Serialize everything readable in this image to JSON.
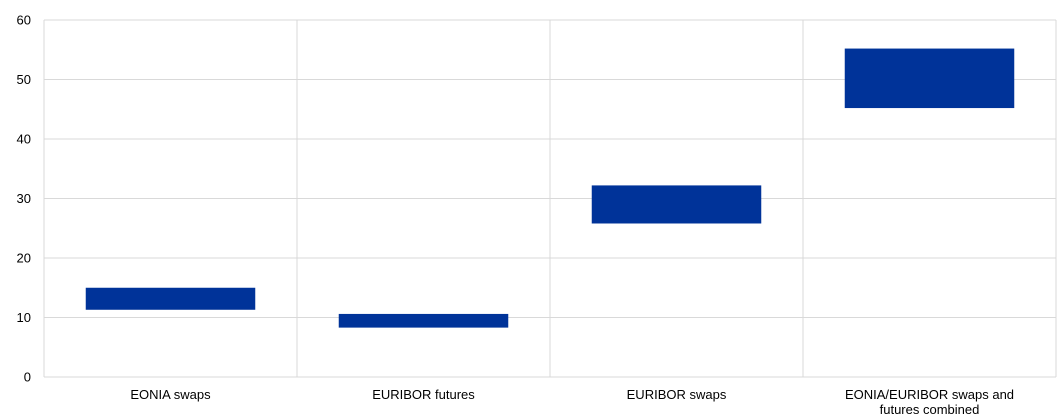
{
  "chart_data": {
    "type": "bar",
    "subtype": "floating-range",
    "categories": [
      [
        "EONIA swaps"
      ],
      [
        "EURIBOR futures"
      ],
      [
        "EURIBOR swaps"
      ],
      [
        "EONIA/EURIBOR swaps and",
        "futures combined"
      ]
    ],
    "series": [
      {
        "ranges": [
          [
            11.3,
            15.0
          ],
          [
            8.3,
            10.6
          ],
          [
            25.8,
            32.2
          ],
          [
            45.2,
            55.2
          ]
        ]
      }
    ],
    "ylim": [
      0,
      60
    ],
    "yticks": [
      0,
      10,
      20,
      30,
      40,
      50,
      60
    ],
    "grid": true,
    "bar_color": "#003399",
    "grid_color": "#d9d9d9"
  }
}
